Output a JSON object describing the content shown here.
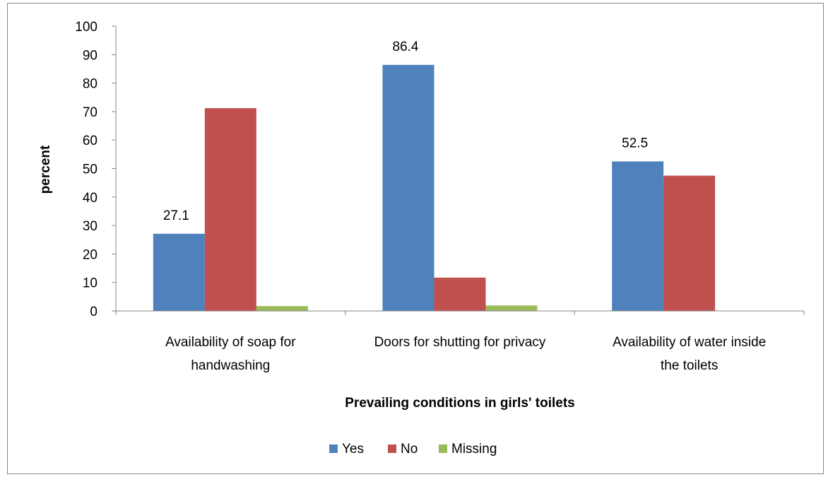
{
  "chart_data": {
    "type": "bar",
    "title": "",
    "xlabel": "Prevailing conditions in girls' toilets",
    "ylabel": "percent",
    "ylim": [
      0,
      100
    ],
    "yticks": [
      0,
      10,
      20,
      30,
      40,
      50,
      60,
      70,
      80,
      90,
      100
    ],
    "grid": false,
    "legend_position": "bottom",
    "categories": [
      [
        "Availability of soap for",
        "handwashing"
      ],
      [
        "Doors for shutting for privacy"
      ],
      [
        "Availability of water inside",
        "the toilets"
      ]
    ],
    "series": [
      {
        "name": "Yes",
        "color": "#4F81BD",
        "values": [
          27.1,
          86.4,
          52.5
        ]
      },
      {
        "name": "No",
        "color": "#C0504D",
        "values": [
          71.2,
          11.7,
          47.5
        ]
      },
      {
        "name": "Missing",
        "color": "#9BBB59",
        "values": [
          1.7,
          1.9,
          0
        ]
      }
    ],
    "data_labels": [
      {
        "series": 0,
        "category": 0,
        "text": "27.1"
      },
      {
        "series": 0,
        "category": 1,
        "text": "86.4"
      },
      {
        "series": 0,
        "category": 2,
        "text": "52.5"
      }
    ]
  }
}
